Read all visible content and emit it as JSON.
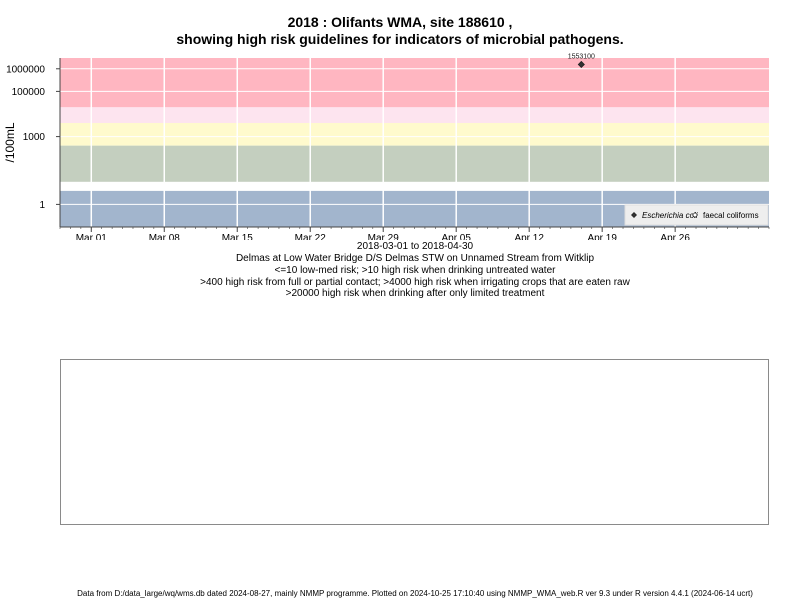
{
  "title_line1": "2018 : Olifants WMA, site 188610 ,",
  "title_line2": "showing high risk guidelines for indicators of microbial pathogens.",
  "date_range": "2018-03-01 to 2018-04-30",
  "site_description": "Delmas at Low Water Bridge D/S Delmas STW on Unnamed Stream from Witklip",
  "guideline_lines": [
    "<=10 low-med risk; >10 high risk when drinking untreated water",
    ">400 high risk from full or partial contact; >4000 high risk when irrigating crops that are eaten raw",
    ">20000 high risk when drinking after only limited treatment"
  ],
  "footer": "Data from D:/data_large/wq/wms.db dated 2024-08-27, mainly NMMP programme. Plotted on 2024-10-25 17:10:40 using NMMP_WMA_web.R ver 9.3 under R version 4.4.1 (2024-06-14 ucrt)",
  "colors": {
    "band_high": "#ffb6c1",
    "band_pink_light": "#fde4ef",
    "band_yellow": "#fffacd",
    "band_sage": "#c4cfbf",
    "band_blue": "#a2b5cd",
    "grid": "#ffffff",
    "marker_ecoli": "#333333",
    "marker_faecal": "#ffffff"
  },
  "chart_data": {
    "type": "scatter",
    "title": "2018 : Olifants WMA, site 188610 ,\nshowing high risk guidelines for indicators of microbial pathogens.",
    "xlabel": "2018-03-01 to 2018-04-30",
    "ylabel": "/100mL",
    "y_scale": "log",
    "xlim": [
      "2018-02-26",
      "2018-05-05"
    ],
    "ylim": [
      0.1,
      3000000
    ],
    "x_ticks": [
      {
        "date": "2018-03-01",
        "label": "Mar 01"
      },
      {
        "date": "2018-03-08",
        "label": "Mar 08"
      },
      {
        "date": "2018-03-15",
        "label": "Mar 15"
      },
      {
        "date": "2018-03-22",
        "label": "Mar 22"
      },
      {
        "date": "2018-03-29",
        "label": "Mar 29"
      },
      {
        "date": "2018-04-05",
        "label": "Apr 05"
      },
      {
        "date": "2018-04-12",
        "label": "Apr 12"
      },
      {
        "date": "2018-04-19",
        "label": "Apr 19"
      },
      {
        "date": "2018-04-26",
        "label": "Apr 26"
      }
    ],
    "y_ticks": [
      {
        "value": 1,
        "label": "1"
      },
      {
        "value": 1000,
        "label": "1000"
      },
      {
        "value": 100000,
        "label": "100000"
      },
      {
        "value": 1000000,
        "label": "1000000"
      }
    ],
    "risk_bands": [
      {
        "from": 0.1,
        "to": 4,
        "color": "#a2b5cd"
      },
      {
        "from": 4,
        "to": 10,
        "color": "#ffffff"
      },
      {
        "from": 10,
        "to": 400,
        "color": "#c4cfbf"
      },
      {
        "from": 400,
        "to": 4000,
        "color": "#fffacd"
      },
      {
        "from": 4000,
        "to": 20000,
        "color": "#fde4ef"
      },
      {
        "from": 20000,
        "to": 3000000,
        "color": "#ffb6c1"
      }
    ],
    "series": [
      {
        "name": "Escherichia coli",
        "marker": "filled-diamond",
        "points": [
          {
            "x": "2018-04-17",
            "y": 1553100,
            "label": "1553100"
          }
        ]
      },
      {
        "name": "faecal coliforms",
        "marker": "open-diamond",
        "points": []
      }
    ],
    "grid": true,
    "legend_position": "bottom-right"
  }
}
